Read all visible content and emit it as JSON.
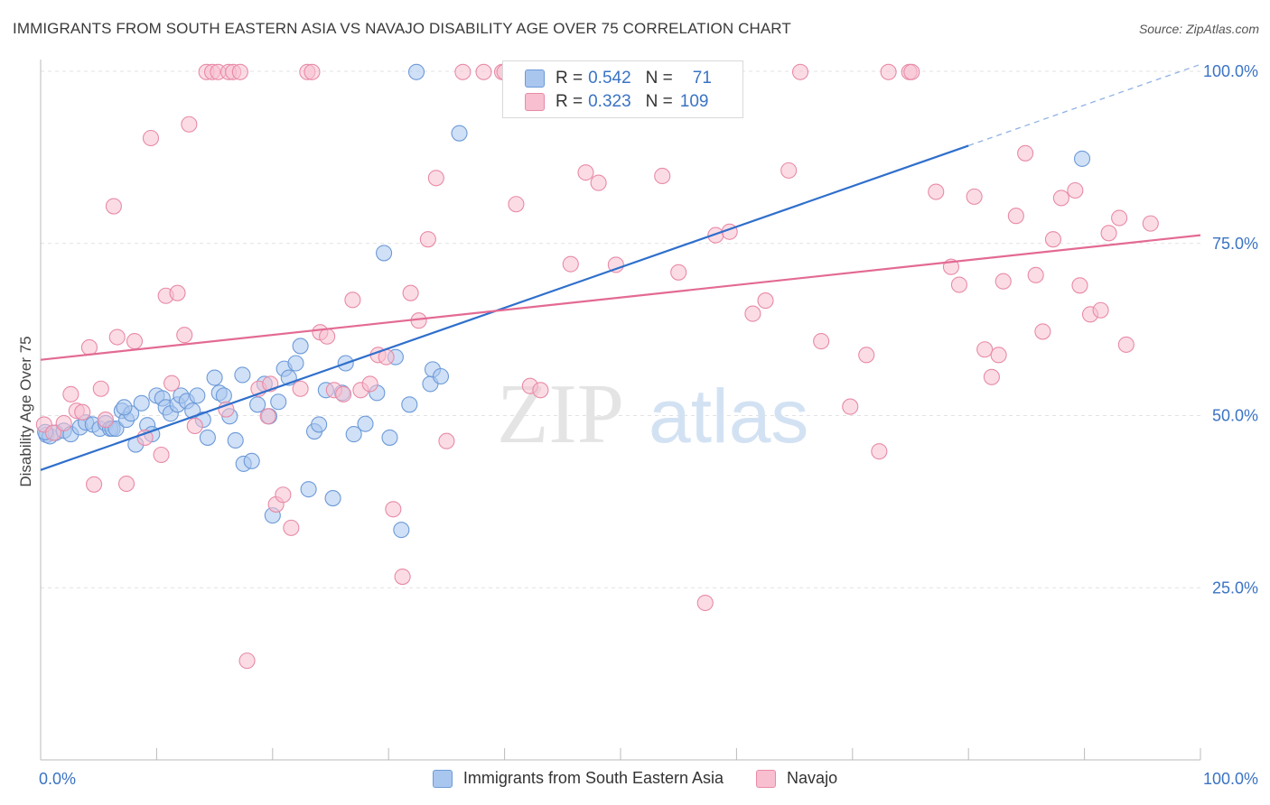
{
  "title": "IMMIGRANTS FROM SOUTH EASTERN ASIA VS NAVAJO DISABILITY AGE OVER 75 CORRELATION CHART",
  "source": "Source: ZipAtlas.com",
  "watermark": {
    "zip": "ZIP",
    "atlas": "atlas"
  },
  "legend": {
    "r_label": "R =",
    "n_label": "N =",
    "rows": [
      {
        "r": "0.542",
        "n": "71",
        "color": "#a9c6ef",
        "border": "#6c9ad8"
      },
      {
        "r": "0.323",
        "n": "109",
        "color": "#f7bfcf",
        "border": "#e88aa6"
      }
    ]
  },
  "bottom_legend": [
    {
      "label": "Immigrants from South Eastern Asia",
      "color": "#a9c6ef",
      "border": "#6c9ad8"
    },
    {
      "label": "Navajo",
      "color": "#f7bfcf",
      "border": "#e88aa6"
    }
  ],
  "chart_data": {
    "type": "scatter",
    "title": "IMMIGRANTS FROM SOUTH EASTERN ASIA VS NAVAJO DISABILITY AGE OVER 75 CORRELATION CHART",
    "xlabel": "",
    "ylabel": "Disability Age Over 75",
    "xlim": [
      0,
      100
    ],
    "ylim": [
      0,
      100
    ],
    "x_tick_labels": [
      "0.0%",
      "100.0%"
    ],
    "y_ticks": [
      {
        "value": 25,
        "label": "25.0%"
      },
      {
        "value": 50,
        "label": "50.0%"
      },
      {
        "value": 75,
        "label": "75.0%"
      },
      {
        "value": 100,
        "label": "100.0%"
      }
    ],
    "grid": true,
    "legend_position": "top-center",
    "series": [
      {
        "name": "Immigrants from South Eastern Asia",
        "color": "#6c9ad8",
        "fill": "#a9c6ef",
        "trend": {
          "x": [
            0,
            80,
            100
          ],
          "y": [
            42.1,
            89.2,
            101.0
          ],
          "solid_until": 80,
          "color": "#2f6fcc"
        },
        "points": [
          [
            0.5,
            47.2
          ],
          [
            0.8,
            47.0
          ],
          [
            1.3,
            47.5
          ],
          [
            2.0,
            47.8
          ],
          [
            2.6,
            47.3
          ],
          [
            3.4,
            48.3
          ],
          [
            3.9,
            49.0
          ],
          [
            4.5,
            48.7
          ],
          [
            5.1,
            48.1
          ],
          [
            5.6,
            48.9
          ],
          [
            6.0,
            48.1
          ],
          [
            6.2,
            48.1
          ],
          [
            6.5,
            48.1
          ],
          [
            7.0,
            50.7
          ],
          [
            7.4,
            49.4
          ],
          [
            7.8,
            50.3
          ],
          [
            7.2,
            51.2
          ],
          [
            8.2,
            45.8
          ],
          [
            8.7,
            51.8
          ],
          [
            9.2,
            48.6
          ],
          [
            9.6,
            47.3
          ],
          [
            10.0,
            52.9
          ],
          [
            10.5,
            52.5
          ],
          [
            10.8,
            51.2
          ],
          [
            11.2,
            50.3
          ],
          [
            11.8,
            51.6
          ],
          [
            12.1,
            52.9
          ],
          [
            12.6,
            52.1
          ],
          [
            13.1,
            50.7
          ],
          [
            13.5,
            52.9
          ],
          [
            14.0,
            49.4
          ],
          [
            14.4,
            46.8
          ],
          [
            15.0,
            55.5
          ],
          [
            15.4,
            53.3
          ],
          [
            15.8,
            52.9
          ],
          [
            16.3,
            49.9
          ],
          [
            16.8,
            46.4
          ],
          [
            17.4,
            55.9
          ],
          [
            17.5,
            43.0
          ],
          [
            18.2,
            43.4
          ],
          [
            18.7,
            51.6
          ],
          [
            19.3,
            54.6
          ],
          [
            19.7,
            49.9
          ],
          [
            20.0,
            35.5
          ],
          [
            20.5,
            52.0
          ],
          [
            21.0,
            56.8
          ],
          [
            21.4,
            55.5
          ],
          [
            22.0,
            57.6
          ],
          [
            22.4,
            60.1
          ],
          [
            23.1,
            39.3
          ],
          [
            23.6,
            47.7
          ],
          [
            24.0,
            48.7
          ],
          [
            24.6,
            53.7
          ],
          [
            25.2,
            38.0
          ],
          [
            26.0,
            53.3
          ],
          [
            26.3,
            57.6
          ],
          [
            27.0,
            47.3
          ],
          [
            28.0,
            48.8
          ],
          [
            29.0,
            53.3
          ],
          [
            29.6,
            73.6
          ],
          [
            30.1,
            46.8
          ],
          [
            30.6,
            58.5
          ],
          [
            31.1,
            33.4
          ],
          [
            31.8,
            51.6
          ],
          [
            32.4,
            99.9
          ],
          [
            33.6,
            54.6
          ],
          [
            33.8,
            56.7
          ],
          [
            34.5,
            55.7
          ],
          [
            36.1,
            91.0
          ],
          [
            89.8,
            87.3
          ],
          [
            0.4,
            47.6
          ]
        ]
      },
      {
        "name": "Navajo",
        "color": "#e88aa6",
        "fill": "#f7bfcf",
        "trend": {
          "x": [
            0,
            100
          ],
          "y": [
            58.1,
            76.2
          ],
          "solid_until": 100,
          "color": "#e36a93"
        },
        "points": [
          [
            0.3,
            48.7
          ],
          [
            1.1,
            47.5
          ],
          [
            2.0,
            48.9
          ],
          [
            2.6,
            53.1
          ],
          [
            3.1,
            50.7
          ],
          [
            3.6,
            50.5
          ],
          [
            4.2,
            59.9
          ],
          [
            4.6,
            40.0
          ],
          [
            5.2,
            53.9
          ],
          [
            5.6,
            49.4
          ],
          [
            6.3,
            80.4
          ],
          [
            6.6,
            61.4
          ],
          [
            7.4,
            40.1
          ],
          [
            8.1,
            60.8
          ],
          [
            9.0,
            46.8
          ],
          [
            9.5,
            90.3
          ],
          [
            10.4,
            44.3
          ],
          [
            10.8,
            67.4
          ],
          [
            11.3,
            54.7
          ],
          [
            11.8,
            67.8
          ],
          [
            12.4,
            61.7
          ],
          [
            12.8,
            92.3
          ],
          [
            13.3,
            48.5
          ],
          [
            14.3,
            99.9
          ],
          [
            14.8,
            99.9
          ],
          [
            15.3,
            99.9
          ],
          [
            16.0,
            50.9
          ],
          [
            16.2,
            99.9
          ],
          [
            16.6,
            99.9
          ],
          [
            17.2,
            99.9
          ],
          [
            17.8,
            14.4
          ],
          [
            18.8,
            53.9
          ],
          [
            19.6,
            49.9
          ],
          [
            19.8,
            54.6
          ],
          [
            20.3,
            37.1
          ],
          [
            20.9,
            38.5
          ],
          [
            21.6,
            33.7
          ],
          [
            22.4,
            53.9
          ],
          [
            23.0,
            99.9
          ],
          [
            23.4,
            99.9
          ],
          [
            24.1,
            62.1
          ],
          [
            24.7,
            61.5
          ],
          [
            25.3,
            53.7
          ],
          [
            26.1,
            53.1
          ],
          [
            26.9,
            66.8
          ],
          [
            27.6,
            53.7
          ],
          [
            28.4,
            54.6
          ],
          [
            29.1,
            58.8
          ],
          [
            29.8,
            58.5
          ],
          [
            30.4,
            36.4
          ],
          [
            31.2,
            26.6
          ],
          [
            31.9,
            67.8
          ],
          [
            32.6,
            63.8
          ],
          [
            33.4,
            75.6
          ],
          [
            34.1,
            84.5
          ],
          [
            35.0,
            46.3
          ],
          [
            36.4,
            99.9
          ],
          [
            38.2,
            99.9
          ],
          [
            39.8,
            99.9
          ],
          [
            40.0,
            99.9
          ],
          [
            41.0,
            80.7
          ],
          [
            42.2,
            54.3
          ],
          [
            43.1,
            53.7
          ],
          [
            44.5,
            99.9
          ],
          [
            45.7,
            72.0
          ],
          [
            47.0,
            85.3
          ],
          [
            48.1,
            83.8
          ],
          [
            49.6,
            71.9
          ],
          [
            50.4,
            99.9
          ],
          [
            52.3,
            99.9
          ],
          [
            53.6,
            84.8
          ],
          [
            55.0,
            70.8
          ],
          [
            55.7,
            99.9
          ],
          [
            57.3,
            22.8
          ],
          [
            58.2,
            76.2
          ],
          [
            59.4,
            76.7
          ],
          [
            61.4,
            64.8
          ],
          [
            62.5,
            66.7
          ],
          [
            64.5,
            85.6
          ],
          [
            65.5,
            99.9
          ],
          [
            67.3,
            60.8
          ],
          [
            69.8,
            51.3
          ],
          [
            71.2,
            58.8
          ],
          [
            72.3,
            44.8
          ],
          [
            73.1,
            99.9
          ],
          [
            74.9,
            99.9
          ],
          [
            75.1,
            99.9
          ],
          [
            77.2,
            82.5
          ],
          [
            78.5,
            71.6
          ],
          [
            79.2,
            69.0
          ],
          [
            80.5,
            81.8
          ],
          [
            81.4,
            59.6
          ],
          [
            82.0,
            55.6
          ],
          [
            82.6,
            58.8
          ],
          [
            83.0,
            69.5
          ],
          [
            84.1,
            79.0
          ],
          [
            84.9,
            88.1
          ],
          [
            85.8,
            70.4
          ],
          [
            86.4,
            62.2
          ],
          [
            87.3,
            75.6
          ],
          [
            88.0,
            81.6
          ],
          [
            89.2,
            82.7
          ],
          [
            89.6,
            68.9
          ],
          [
            90.5,
            64.7
          ],
          [
            91.4,
            65.3
          ],
          [
            92.1,
            76.5
          ],
          [
            93.0,
            78.7
          ],
          [
            93.6,
            60.3
          ],
          [
            95.7,
            77.9
          ]
        ]
      }
    ]
  }
}
